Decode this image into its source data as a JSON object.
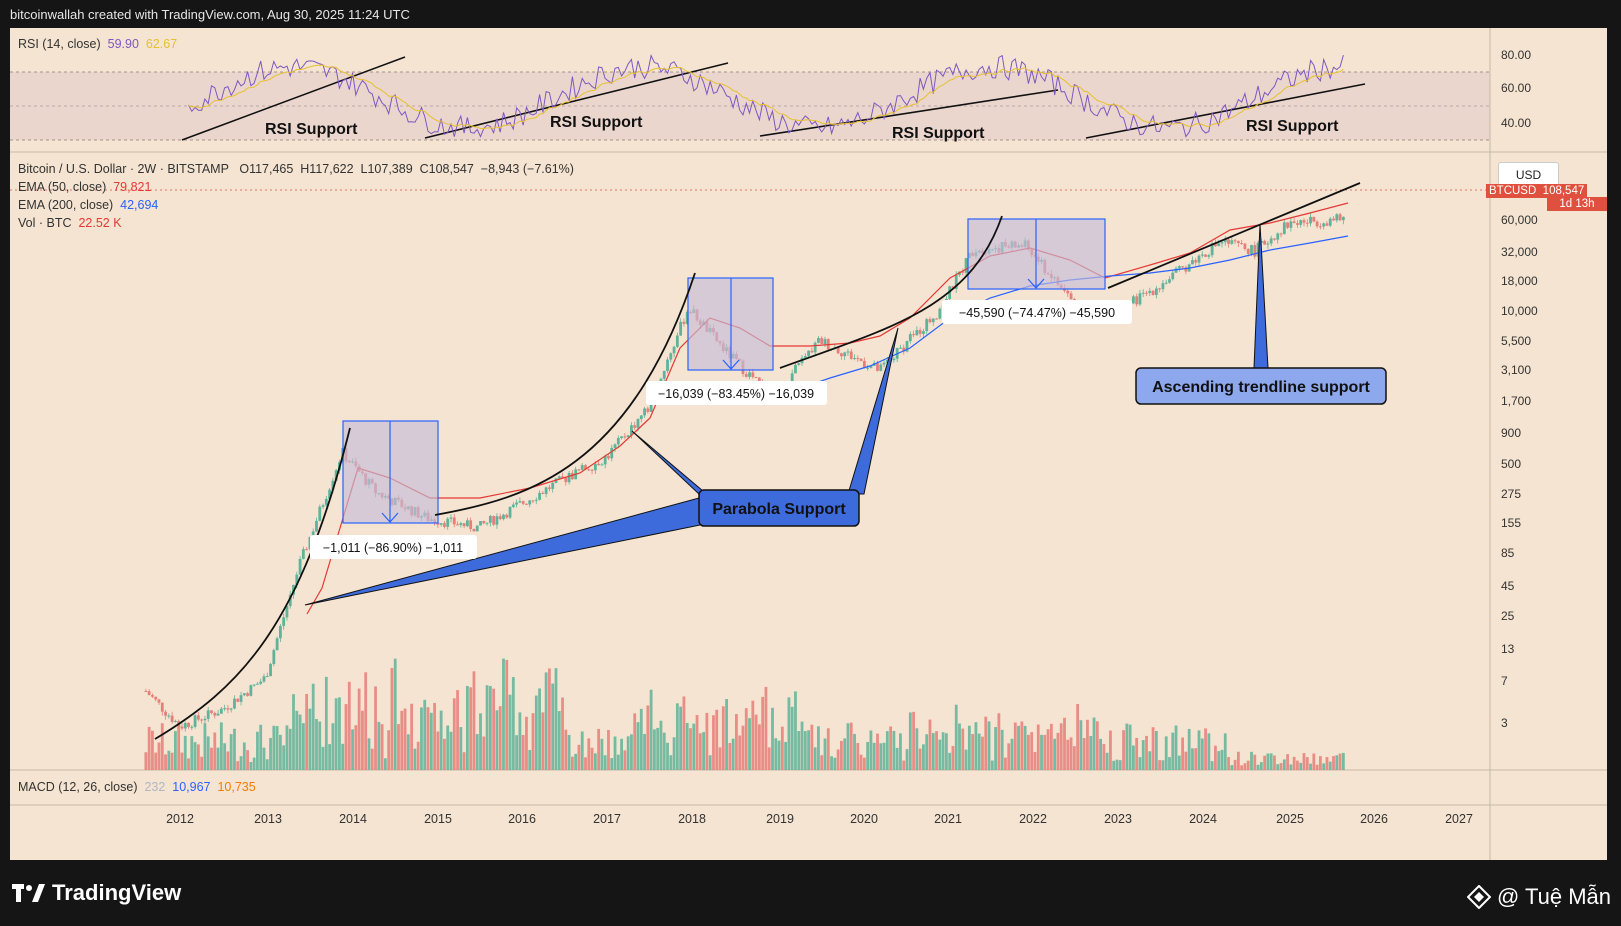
{
  "header": {
    "credit": "bitcoinwallah created with TradingView.com, Aug 30, 2025 11:24 UTC"
  },
  "rsi": {
    "label": "RSI (14, close)",
    "value1": "59.90",
    "value2": "62.67",
    "axis": [
      "80.00",
      "60.00",
      "40.00"
    ],
    "annotation": "RSI Support"
  },
  "price": {
    "title": "Bitcoin / U.S. Dollar · 2W · BITSTAMP",
    "o": "O117,465",
    "h": "H117,622",
    "l": "L107,389",
    "c": "C108,547",
    "chg": "−8,943 (−7.61%)",
    "ema50_label": "EMA (50, close)",
    "ema50_value": "79,821",
    "ema200_label": "EMA (200, close)",
    "ema200_value": "42,694",
    "vol_label": "Vol · BTC",
    "vol_value": "22.52 K",
    "currency": "USD",
    "ticker_tag": "BTCUSD",
    "last_price": "108,547",
    "countdown": "1d 13h",
    "axis": [
      "60,000",
      "32,000",
      "18,000",
      "10,000",
      "5,500",
      "3,100",
      "1,700",
      "900",
      "500",
      "275",
      "155",
      "85",
      "45",
      "25",
      "13",
      "7",
      "3"
    ]
  },
  "macd": {
    "label": "MACD (12, 26, close)",
    "v1": "232",
    "v2": "10,967",
    "v3": "10,735"
  },
  "xaxis": [
    "2012",
    "2013",
    "2014",
    "2015",
    "2016",
    "2017",
    "2018",
    "2019",
    "2020",
    "2021",
    "2022",
    "2023",
    "2024",
    "2025",
    "2026",
    "2027"
  ],
  "annotations": {
    "drawdown1": "−1,011 (−86.90%) −1,011",
    "drawdown2": "−16,039 (−83.45%) −16,039",
    "drawdown3": "−45,590 (−74.47%) −45,590",
    "parabola": "Parabola Support",
    "ascending": "Ascending trendline support"
  },
  "chart_data": {
    "type": "line",
    "title": "Bitcoin / U.S. Dollar · 2W · BITSTAMP",
    "y_scale": "log",
    "x": [
      2011.6,
      2012.0,
      2012.5,
      2013.0,
      2013.4,
      2013.9,
      2014.3,
      2014.9,
      2015.5,
      2016.0,
      2016.5,
      2017.0,
      2017.5,
      2017.96,
      2018.4,
      2018.95,
      2019.5,
      2020.2,
      2020.9,
      2021.3,
      2021.9,
      2022.5,
      2022.9,
      2023.5,
      2024.2,
      2024.6,
      2025.0,
      2025.66
    ],
    "series": [
      {
        "name": "BTCUSD",
        "values": [
          10,
          5,
          7,
          13,
          120,
          1100,
          500,
          300,
          250,
          400,
          650,
          1000,
          2700,
          19000,
          8000,
          3200,
          10000,
          5500,
          18000,
          60000,
          65000,
          20000,
          16000,
          30000,
          70000,
          58000,
          100000,
          108547
        ]
      }
    ],
    "rsi_range": [
      30,
      90
    ],
    "annotations": [
      "RSI Support",
      "Parabola Support",
      "Ascending trendline support"
    ]
  },
  "colors": {
    "background": "#f4e4d1",
    "up": "#5fb39a",
    "down": "#e67f79",
    "ema50": "#e53935",
    "ema200": "#2962ff",
    "rsi": "#7e57c2",
    "box": "#2962ff"
  },
  "icons": {
    "logo": "tradingview-logo-icon",
    "watermark": "binance-diamond-icon"
  }
}
